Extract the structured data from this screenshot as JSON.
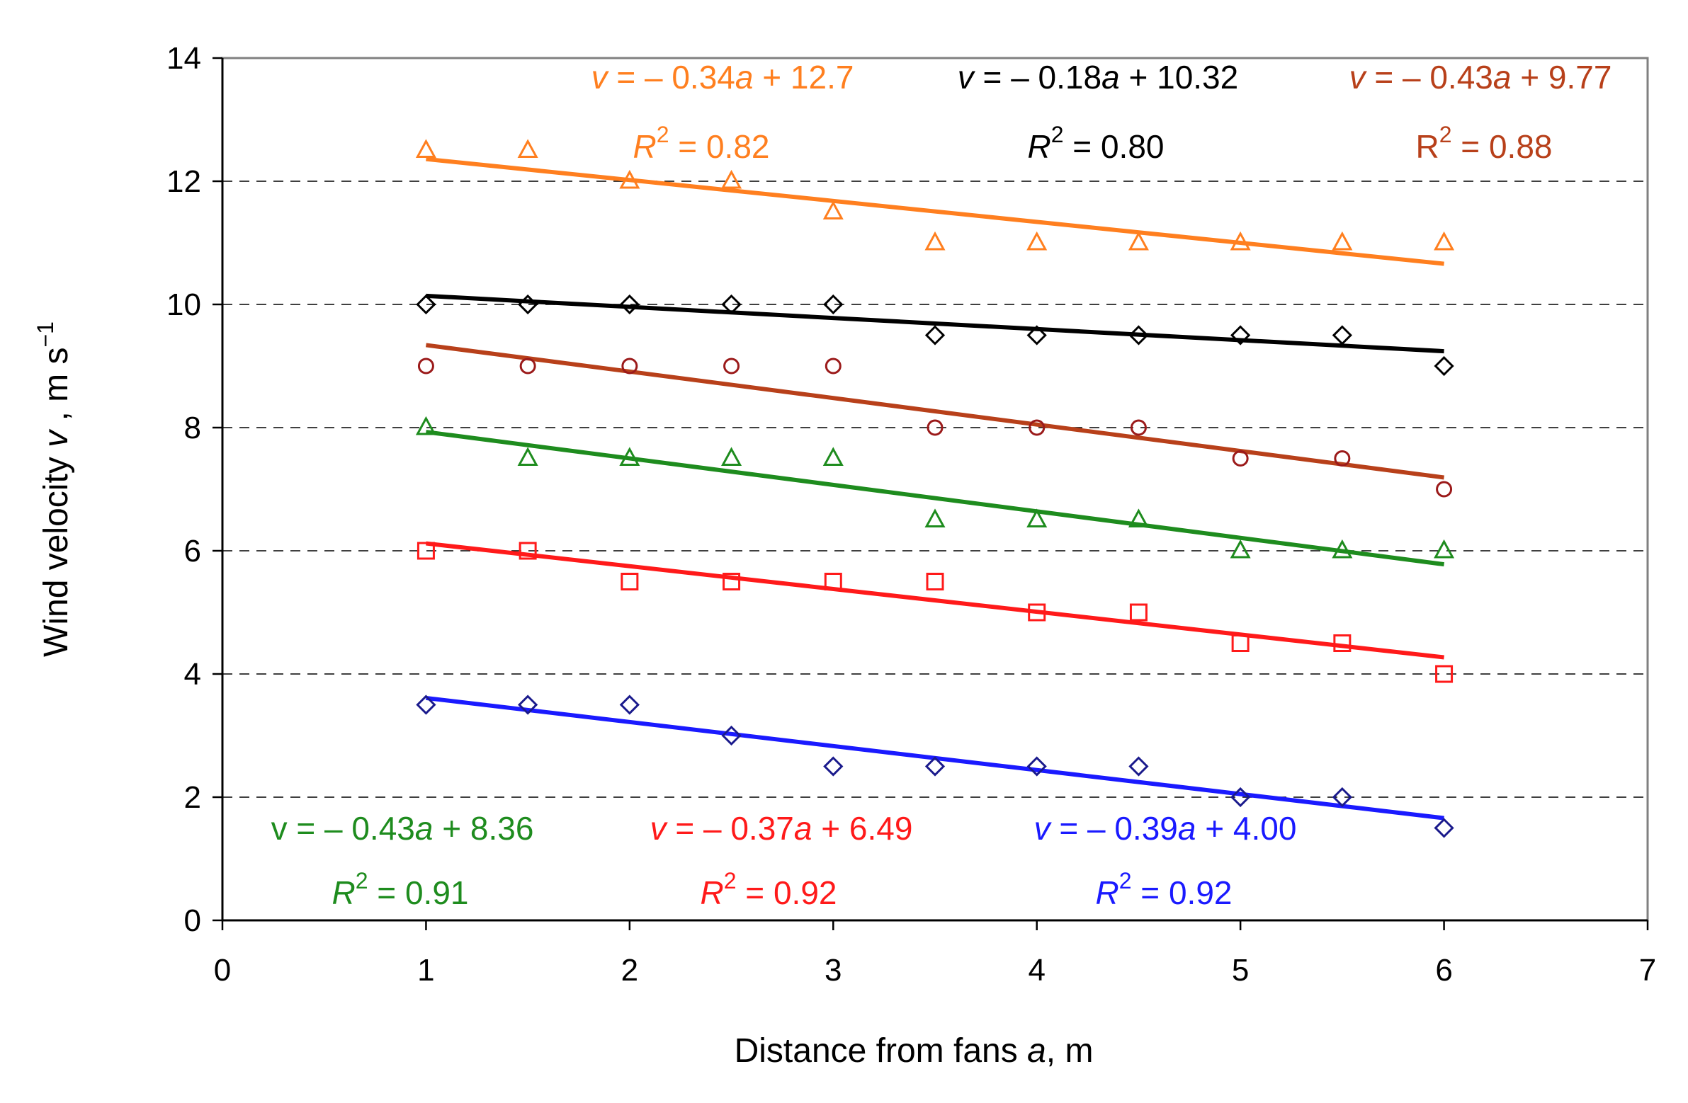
{
  "chart_data": {
    "type": "scatter",
    "title": "",
    "xlabel": {
      "prefix": "Distance from fans  ",
      "var": "a",
      "suffix": ", m"
    },
    "ylabel": {
      "prefix": "Wind velocity  ",
      "var": "v",
      "suffix": " , m s",
      "sup": "−1"
    },
    "xlim": [
      0,
      7
    ],
    "ylim": [
      0,
      14
    ],
    "xticks": [
      "0",
      "1",
      "2",
      "3",
      "4",
      "5",
      "6",
      "7"
    ],
    "yticks": [
      "0",
      "2",
      "4",
      "6",
      "8",
      "10",
      "12",
      "14"
    ],
    "grid": "horizontal dashed",
    "x": [
      1,
      1.5,
      2,
      2.5,
      3,
      3.5,
      4,
      4.5,
      5,
      5.5,
      6
    ],
    "series": [
      {
        "name": "orange",
        "color": "#ff7f1f",
        "marker": "triangle",
        "values": [
          12.5,
          12.5,
          12.0,
          12.0,
          11.5,
          11.0,
          11.0,
          11.0,
          11.0,
          11.0,
          11.0
        ],
        "fit": {
          "slope": -0.34,
          "intercept": 12.7,
          "xrange": [
            1,
            6
          ]
        },
        "equation": {
          "v": "v",
          "mid": " = – 0.34",
          "a": "a",
          "tail": " + 12.7"
        },
        "r2": {
          "R": "R",
          "sup": "2",
          "tail": " = 0.82"
        }
      },
      {
        "name": "black",
        "color": "#000000",
        "marker": "diamond",
        "values": [
          10.0,
          10.0,
          10.0,
          10.0,
          10.0,
          9.5,
          9.5,
          9.5,
          9.5,
          9.5,
          9.0
        ],
        "fit": {
          "slope": -0.18,
          "intercept": 10.32,
          "xrange": [
            1,
            6
          ]
        },
        "equation": {
          "v": "v",
          "mid": " = – 0.18",
          "a": "a",
          "tail": " + 10.32"
        },
        "r2": {
          "R": "R",
          "sup": "2",
          "tail": " = 0.80"
        }
      },
      {
        "name": "brown",
        "color": "#b8401a",
        "marker_color": "#9b1a1a",
        "marker": "circle",
        "values": [
          9.0,
          9.0,
          9.0,
          9.0,
          9.0,
          8.0,
          8.0,
          8.0,
          7.5,
          7.5,
          7.0
        ],
        "fit": {
          "slope": -0.43,
          "intercept": 9.77,
          "xrange": [
            1,
            6
          ]
        },
        "equation": {
          "v": "v",
          "mid": " = – 0.43",
          "a": "a",
          "tail": " + 9.77"
        },
        "r2": {
          "R": "R",
          "sup": "2",
          "tail": " = 0.88"
        }
      },
      {
        "name": "green",
        "color": "#1e8c1e",
        "marker": "triangle",
        "values": [
          8.0,
          7.5,
          7.5,
          7.5,
          7.5,
          6.5,
          6.5,
          6.5,
          6.0,
          6.0,
          6.0
        ],
        "fit": {
          "slope": -0.43,
          "intercept": 8.36,
          "xrange": [
            1,
            6
          ]
        },
        "equation": {
          "v": "v",
          "mid": " = – 0.43",
          "a": "a",
          "tail": " + 8.36"
        },
        "r2": {
          "R": "R",
          "sup": "2",
          "tail": " = 0.91"
        }
      },
      {
        "name": "red",
        "color": "#ff1a1a",
        "marker": "square",
        "values": [
          6.0,
          6.0,
          5.5,
          5.5,
          5.5,
          5.5,
          5.0,
          5.0,
          4.5,
          4.5,
          4.0
        ],
        "fit": {
          "slope": -0.37,
          "intercept": 6.49,
          "xrange": [
            1,
            6
          ]
        },
        "equation": {
          "v": "v",
          "mid": " = – 0.37",
          "a": "a",
          "tail": " + 6.49"
        },
        "r2": {
          "R": "R",
          "sup": "2",
          "tail": " = 0.92"
        }
      },
      {
        "name": "blue",
        "color": "#1a1aff",
        "marker_color": "#1a1a8c",
        "marker": "diamond",
        "values": [
          3.5,
          3.5,
          3.5,
          3.0,
          2.5,
          2.5,
          2.5,
          2.5,
          2.0,
          2.0,
          1.5
        ],
        "fit": {
          "slope": -0.39,
          "intercept": 4.0,
          "xrange": [
            1,
            6
          ]
        },
        "equation": {
          "v": "v",
          "mid": " = – 0.39",
          "a": "a",
          "tail": " + 4.00"
        },
        "r2": {
          "R": "R",
          "sup": "2",
          "tail": " = 0.92"
        }
      }
    ]
  }
}
